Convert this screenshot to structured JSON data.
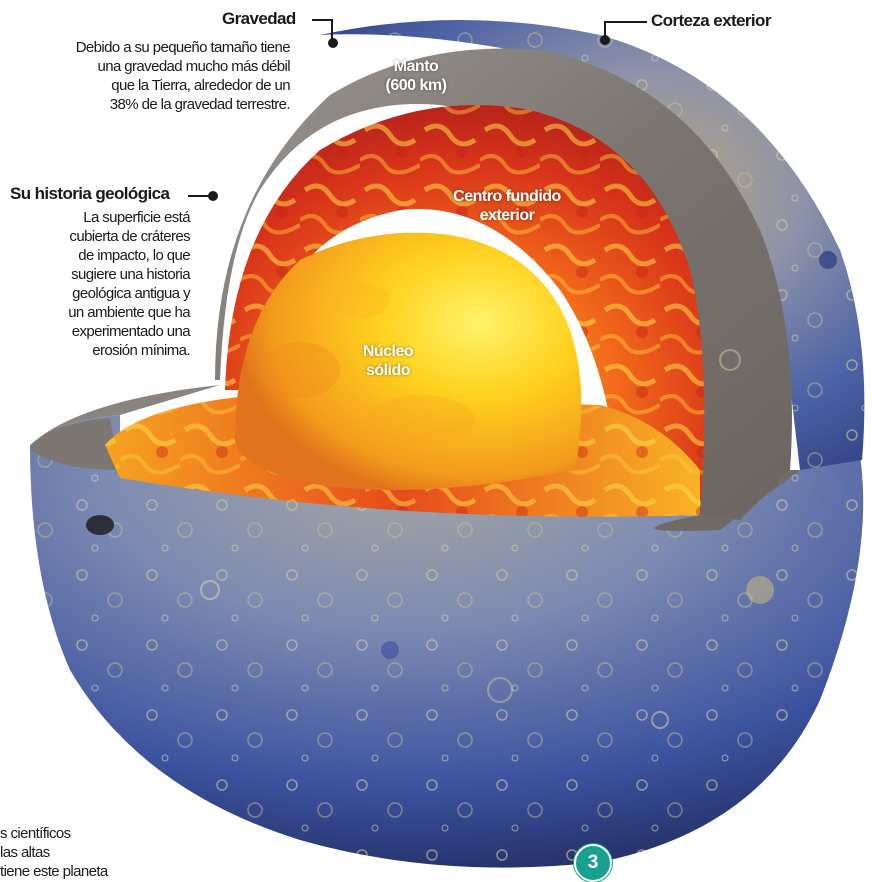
{
  "labels": {
    "gravity": {
      "title": "Gravedad",
      "lines": [
        "Debido a su pequeño tamaño tiene",
        "una gravedad mucho más débil",
        "que la Tierra, alrededor de un",
        "38% de la gravedad terrestre."
      ]
    },
    "outer_crust": {
      "title": "Corteza exterior"
    },
    "geology": {
      "title": "Su historia geológica",
      "lines": [
        "La superficie está",
        "cubierta de cráteres",
        "de impacto, lo que",
        "sugiere una historia",
        "geológica antigua y",
        "un ambiente que ha",
        "experimentado una",
        "erosión mínima."
      ]
    },
    "mantle": {
      "line1": "Manto",
      "line2": "(600 km)"
    },
    "outer_core": {
      "line1": "Centro fundido",
      "line2": "exterior"
    },
    "inner_core": {
      "line1": "Núcleo",
      "line2": "sólido"
    }
  },
  "footer": {
    "lines": [
      "s científicos",
      "las altas",
      "tiene este planeta"
    ]
  },
  "page_number": "3",
  "colors": {
    "surface_blue": "#4a62a8",
    "surface_tan": "#c9b27a",
    "mantle_gray": "#8c8682",
    "molten_red": "#d8341a",
    "molten_yellow": "#ffd21f",
    "badge_teal": "#1aa08f"
  }
}
